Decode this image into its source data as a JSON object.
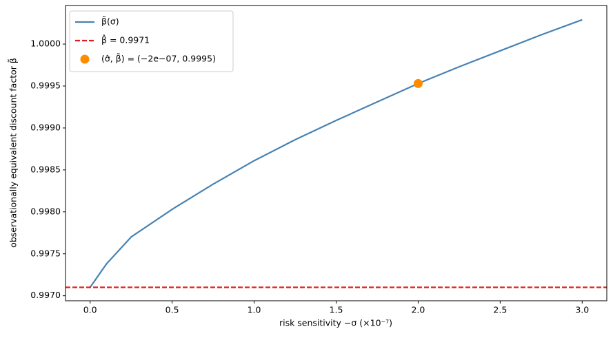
{
  "chart_data": {
    "type": "line",
    "xlabel": "risk sensitivity −σ (×10⁻⁷)",
    "ylabel": "observationally equivalent discount factor β̃",
    "x": [
      0.0,
      0.1,
      0.25,
      0.5,
      0.75,
      1.0,
      1.25,
      1.5,
      1.75,
      2.0,
      2.25,
      2.5,
      2.75,
      3.0
    ],
    "series": [
      {
        "name": "β̃(σ)",
        "color": "#4682b4",
        "values": [
          0.9971,
          0.99738,
          0.9977,
          0.99803,
          0.99833,
          0.99861,
          0.99886,
          0.99909,
          0.99931,
          0.99953,
          0.99973,
          0.99992,
          1.00011,
          1.00029
        ]
      }
    ],
    "hline": {
      "name": "β̂ = 0.9971",
      "value": 0.9971,
      "color": "#e41a1c"
    },
    "point": {
      "name": "(σ̂, β̃) = (−2e−07, 0.9995)",
      "x": 2.0,
      "y": 0.99953,
      "color": "#ff8c00"
    },
    "xlim": [
      -0.15,
      3.15
    ],
    "ylim": [
      0.99694,
      1.00046
    ],
    "xticks": [
      {
        "value": 0,
        "label": "0.0"
      },
      0.5,
      {
        "value": 1,
        "label": "1.0"
      },
      1.5,
      {
        "value": 2,
        "label": "2.0"
      },
      2.5,
      {
        "value": 3,
        "label": "3.0"
      }
    ],
    "yticks": [
      {
        "value": 0.997,
        "label": "0.9970"
      },
      0.9975,
      {
        "value": 0.998,
        "label": "0.9980"
      },
      0.9985,
      {
        "value": 0.999,
        "label": "0.9990"
      },
      0.9995,
      {
        "value": 1,
        "label": "1.0000"
      }
    ],
    "legend": "upper left"
  }
}
